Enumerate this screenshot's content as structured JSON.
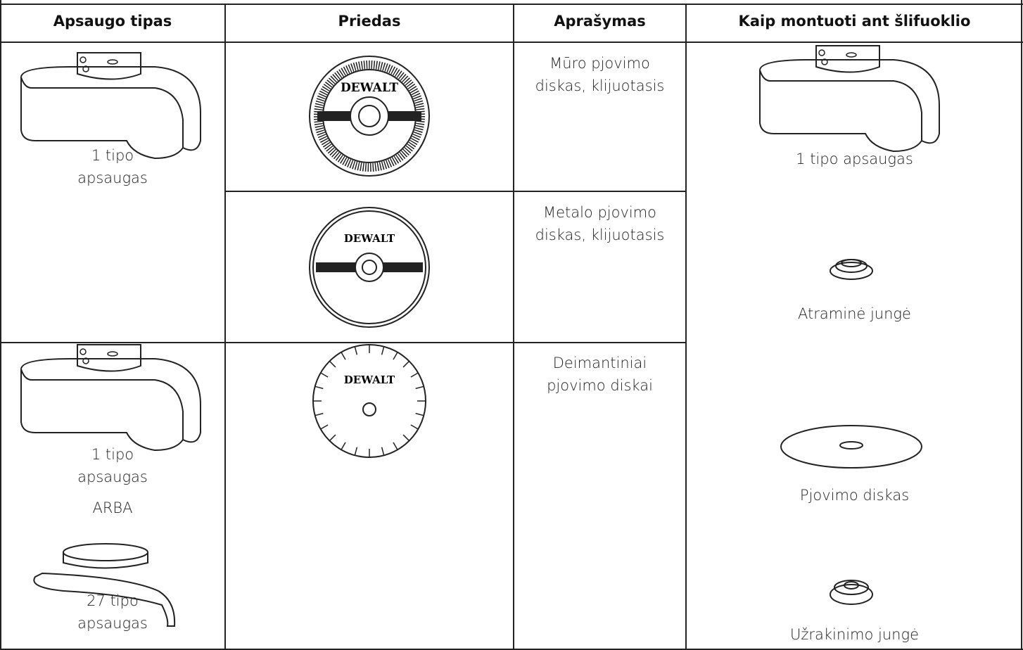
{
  "table": {
    "columns": [
      "Apsaugo tipas",
      "Priedas",
      "Aprašymas",
      "Kaip montuoti ant šlifuoklio"
    ],
    "brand": "DEWALT",
    "rows": [
      {
        "guard": [
          "1 tipo apsaugas"
        ],
        "description": "Mūro pjovimo diskas, klijuotasis"
      },
      {
        "description": "Metalo pjovimo diskas, klijuotasis"
      },
      {
        "guard": [
          "1 tipo apsaugas",
          "ARBA",
          "27 tipo apsaugas"
        ],
        "description": "Deimantiniai pjovimo diskai"
      }
    ],
    "mounting": [
      "1 tipo apsaugas",
      "Atraminė jungė",
      "Pjovimo diskas",
      "Užrakinimo jungė"
    ]
  }
}
